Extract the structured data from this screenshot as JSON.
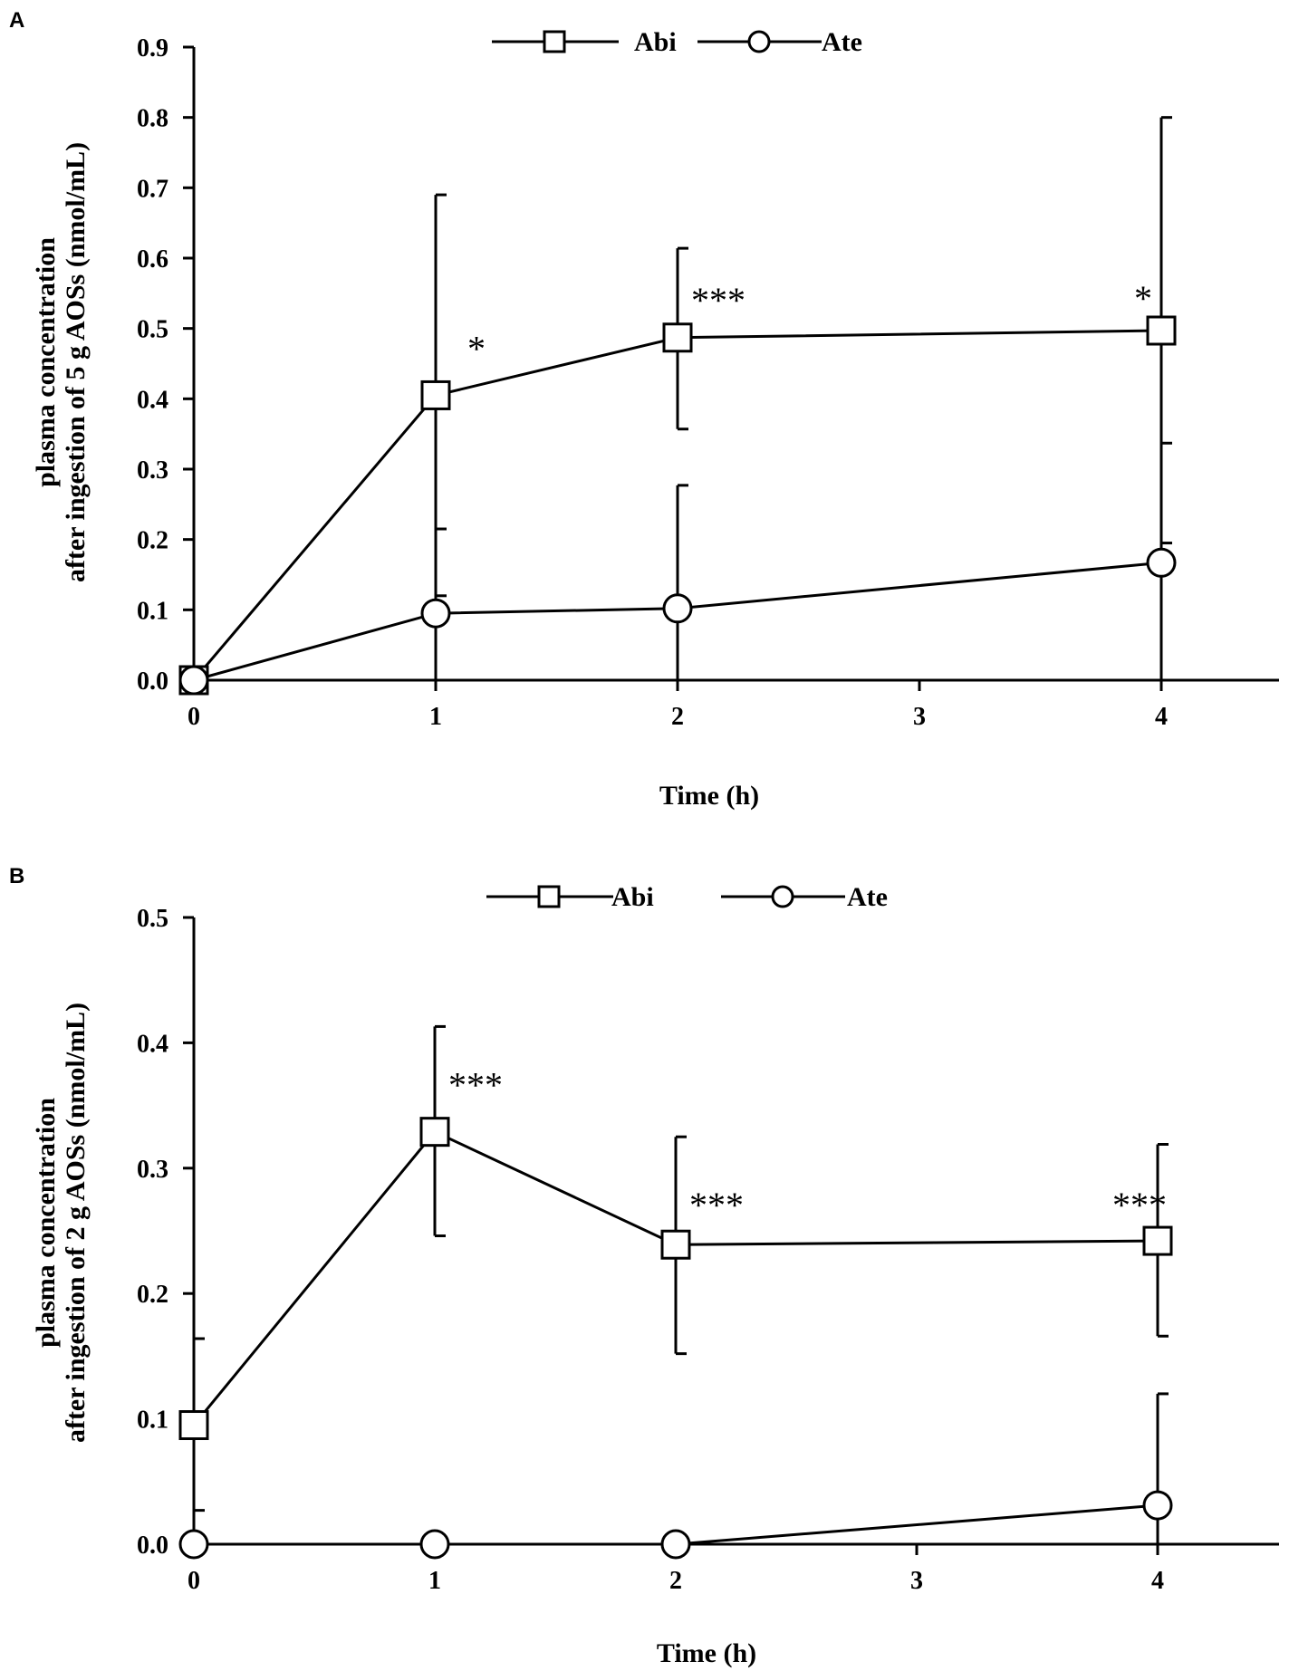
{
  "chart_data": [
    {
      "type": "line",
      "panel_label": "A",
      "title": "",
      "xlabel": "Time (h)",
      "ylabel_lines": [
        "plasma concentration",
        "after ingestion of 5 g AOSs (nmol/mL)"
      ],
      "xlim": [
        0,
        4.5
      ],
      "ylim": [
        0,
        0.9
      ],
      "xticks": [
        0,
        1,
        2,
        3,
        4
      ],
      "xtick_labels": [
        "0",
        "1",
        "2",
        "3",
        "4"
      ],
      "yticks": [
        0,
        0.1,
        0.2,
        0.3,
        0.4,
        0.5,
        0.6,
        0.7,
        0.8,
        0.9
      ],
      "ytick_labels": [
        "0.0",
        "0.1",
        "0.2",
        "0.3",
        "0.4",
        "0.5",
        "0.6",
        "0.7",
        "0.8",
        "0.9"
      ],
      "legend": {
        "position": "top-center",
        "entries": [
          "Abi",
          "Ate"
        ]
      },
      "x": [
        0,
        1,
        2,
        4
      ],
      "series": [
        {
          "name": "Abi",
          "marker": "square",
          "values": [
            0.0,
            0.405,
            0.487,
            0.497
          ],
          "err_upper": [
            0.0,
            0.69,
            0.614,
            0.8
          ],
          "err_lower": [
            0.0,
            0.12,
            0.357,
            0.195
          ],
          "significance": [
            "",
            "*",
            "***",
            "*"
          ]
        },
        {
          "name": "Ate",
          "marker": "circle",
          "values": [
            0.0,
            0.095,
            0.102,
            0.167
          ],
          "err_upper": [
            0.0,
            0.215,
            0.277,
            0.337
          ],
          "err_lower": [
            0.0,
            0.0,
            0.0,
            0.0
          ],
          "significance": [
            "",
            "",
            "",
            ""
          ]
        }
      ]
    },
    {
      "type": "line",
      "panel_label": "B",
      "title": "",
      "xlabel": "Time (h)",
      "ylabel_lines": [
        "plasma concentration",
        "after ingestion of 2 g AOSs (nmol/mL)"
      ],
      "xlim": [
        0,
        4.5
      ],
      "ylim": [
        0,
        0.5
      ],
      "xticks": [
        0,
        1,
        2,
        3,
        4
      ],
      "xtick_labels": [
        "0",
        "1",
        "2",
        "3",
        "4"
      ],
      "yticks": [
        0,
        0.1,
        0.2,
        0.3,
        0.4,
        0.5
      ],
      "ytick_labels": [
        "0.0",
        "0.1",
        "0.2",
        "0.3",
        "0.4",
        "0.5"
      ],
      "legend": {
        "position": "top-center",
        "entries": [
          "Abi",
          "Ate"
        ]
      },
      "x": [
        0,
        1,
        2,
        4
      ],
      "series": [
        {
          "name": "Abi",
          "marker": "square",
          "values": [
            0.095,
            0.329,
            0.239,
            0.242
          ],
          "err_upper": [
            0.164,
            0.413,
            0.325,
            0.319
          ],
          "err_lower": [
            0.027,
            0.246,
            0.152,
            0.166
          ],
          "significance": [
            "",
            "***",
            "***",
            "***"
          ]
        },
        {
          "name": "Ate",
          "marker": "circle",
          "values": [
            0.0,
            0.0,
            0.0,
            0.031
          ],
          "err_upper": [
            0.0,
            0.0,
            0.0,
            0.12
          ],
          "err_lower": [
            0.0,
            0.0,
            0.0,
            0.0
          ],
          "significance": [
            "",
            "",
            "",
            ""
          ]
        }
      ]
    }
  ]
}
